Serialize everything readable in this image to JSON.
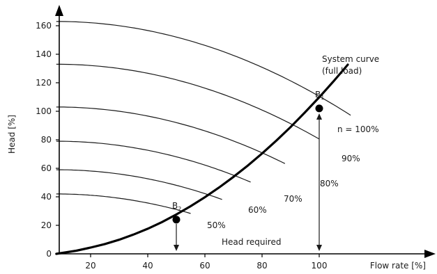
{
  "chart_data": {
    "type": "line",
    "title": "",
    "xlabel": "Flow rate [%]",
    "ylabel": "Head [%]",
    "xlim": [
      8,
      130
    ],
    "ylim": [
      0,
      170
    ],
    "x_ticks": [
      20,
      40,
      60,
      80,
      100
    ],
    "y_ticks": [
      0,
      20,
      40,
      60,
      80,
      100,
      120,
      140,
      160
    ],
    "x_tick_labels": [
      "20",
      "40",
      "60",
      "80",
      "100"
    ],
    "y_tick_labels": [
      "0",
      "20",
      "40",
      "60",
      "80",
      "100",
      "120",
      "140",
      "160"
    ],
    "grid": false,
    "pump_curves": [
      {
        "label": "n = 100%",
        "speed": 1.0,
        "shutoff_head": 163,
        "x_end": 111
      },
      {
        "label": "90%",
        "speed": 0.9,
        "shutoff_head": 133,
        "x_end": 100
      },
      {
        "label": "80%",
        "speed": 0.8,
        "shutoff_head": 103,
        "x_end": 88
      },
      {
        "label": "70%",
        "speed": 0.7,
        "shutoff_head": 79,
        "x_end": 76
      },
      {
        "label": "60%",
        "speed": 0.6,
        "shutoff_head": 59,
        "x_end": 66
      },
      {
        "label": "50%",
        "speed": 0.5,
        "shutoff_head": 42,
        "x_end": 55
      }
    ],
    "system_curve": {
      "label_line1": "System curve",
      "label_line2": "(full load)",
      "x": [
        8,
        15,
        20,
        25,
        30,
        35,
        40,
        45,
        50,
        55,
        60,
        65,
        70,
        75,
        80,
        85,
        90,
        95,
        100,
        105,
        110
      ],
      "y": [
        0,
        2.2,
        4.4,
        6.9,
        9.9,
        13.5,
        17.6,
        22.3,
        27.6,
        33.4,
        39.7,
        46.6,
        54.0,
        61.9,
        70.4,
        79.4,
        89.0,
        99.2,
        109.8,
        121.0,
        132.7
      ]
    },
    "points": [
      {
        "name": "B",
        "subscript": "1",
        "x": 100,
        "y": 102
      },
      {
        "name": "B",
        "subscript": "2",
        "x": 50,
        "y": 24
      }
    ],
    "annotations": {
      "head_required": "Head required"
    }
  }
}
